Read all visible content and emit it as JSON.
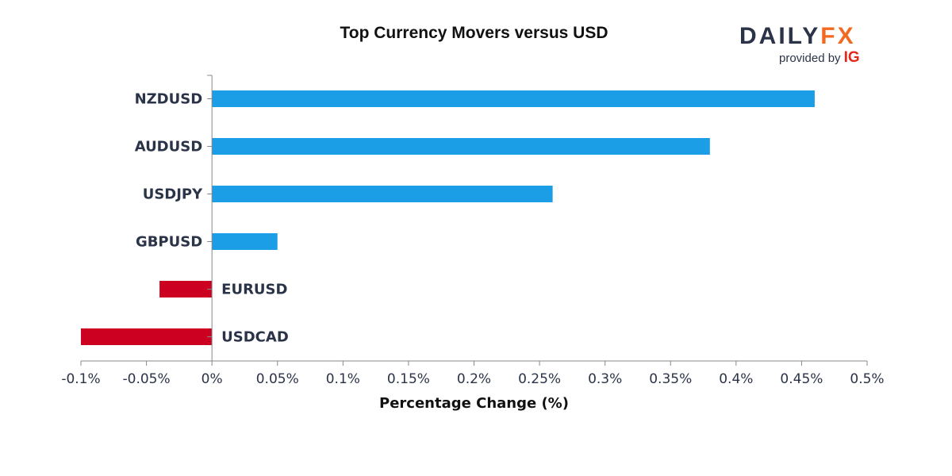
{
  "chart_data": {
    "type": "bar",
    "orientation": "horizontal",
    "title": "Top Currency Movers versus USD",
    "xlabel": "Percentage Change (%)",
    "ylabel": "",
    "categories": [
      "NZDUSD",
      "AUDUSD",
      "USDJPY",
      "GBPUSD",
      "EURUSD",
      "USDCAD"
    ],
    "values": [
      0.46,
      0.38,
      0.26,
      0.05,
      -0.04,
      -0.1
    ],
    "xlim": [
      -0.1,
      0.5
    ],
    "xticks": [
      -0.1,
      -0.05,
      0,
      0.05,
      0.1,
      0.15,
      0.2,
      0.25,
      0.3,
      0.35,
      0.4,
      0.45,
      0.5
    ],
    "xtick_labels": [
      "-0.1%",
      "-0.05%",
      "0%",
      "0.05%",
      "0.1%",
      "0.15%",
      "0.2%",
      "0.25%",
      "0.3%",
      "0.35%",
      "0.4%",
      "0.45%",
      "0.5%"
    ],
    "grid": false,
    "legend": "none",
    "colors": {
      "positive": "#1b9ee6",
      "negative": "#cc0020",
      "axis": "#888888",
      "text": "#2a3347"
    }
  },
  "logo": {
    "part1": "DAILY",
    "part2": "FX",
    "provided_by": "provided by",
    "brand": "IG",
    "colors": {
      "part1": "#2a3347",
      "part2": "#f26a21",
      "brand": "#e3261c"
    }
  }
}
